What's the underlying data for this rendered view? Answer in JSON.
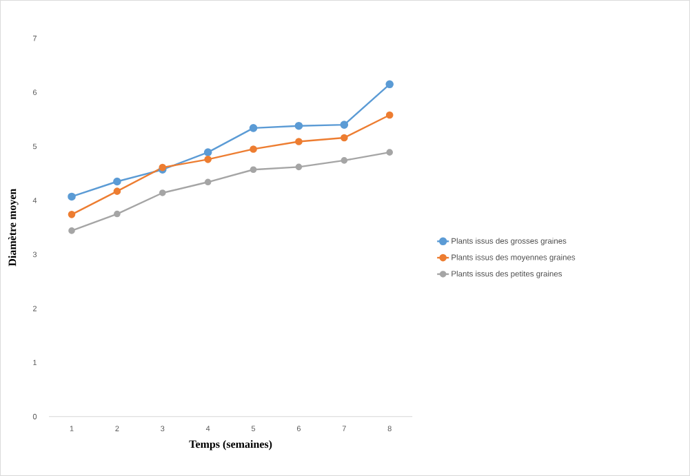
{
  "chart_data": {
    "type": "line",
    "xlabel": "Temps (semaines)",
    "ylabel": "Diamètre moyen",
    "categories": [
      "1",
      "2",
      "3",
      "4",
      "5",
      "6",
      "7",
      "8"
    ],
    "series": [
      {
        "name": "Plants issus des grosses graines",
        "color": "#5b9bd5",
        "values": [
          4.07,
          4.35,
          4.57,
          4.89,
          5.34,
          5.38,
          5.4,
          6.15
        ]
      },
      {
        "name": "Plants issus des moyennes graines",
        "color": "#ed7d31",
        "values": [
          3.74,
          4.17,
          4.61,
          4.76,
          4.95,
          5.09,
          5.16,
          5.58
        ]
      },
      {
        "name": "Plants issus des petites graines",
        "color": "#a5a5a5",
        "values": [
          3.44,
          3.75,
          4.14,
          4.34,
          4.57,
          4.62,
          4.74,
          4.89
        ]
      }
    ],
    "ylim": [
      0,
      7
    ],
    "yticks": [
      0,
      1,
      2,
      3,
      4,
      5,
      6,
      7
    ],
    "legend": "right",
    "marker": "circle",
    "line_style": "solid"
  }
}
